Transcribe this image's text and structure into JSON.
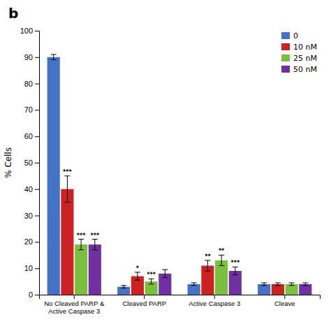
{
  "chart_data": {
    "type": "bar",
    "title": "b",
    "ylabel": "% Cells",
    "categories": [
      "No Cleaved PARP &\nActive Caspase 3",
      "Cleaved PARP",
      "Active Caspase 3",
      "Cleave"
    ],
    "series": [
      {
        "name": "0",
        "color": "#4472C4",
        "values": [
          90,
          3,
          4,
          4
        ],
        "errors": [
          1,
          0.5,
          0.5,
          0.5
        ],
        "significance": [
          null,
          null,
          null,
          null
        ]
      },
      {
        "name": "10 nM",
        "color": "#CC2222",
        "values": [
          40,
          7,
          11,
          4
        ],
        "errors": [
          5,
          1.5,
          2,
          0.5
        ],
        "significance": [
          "***",
          "*",
          "**",
          null
        ]
      },
      {
        "name": "25 nM",
        "color": "#7BBF3E",
        "values": [
          19,
          5,
          13,
          4
        ],
        "errors": [
          2,
          1,
          2,
          0.5
        ],
        "significance": [
          "***",
          "***",
          "**",
          null
        ]
      },
      {
        "name": "50 nM",
        "color": "#7030A0",
        "values": [
          19,
          8,
          9,
          4
        ],
        "errors": [
          2,
          1.5,
          1.5,
          0.5
        ],
        "significance": [
          "***",
          null,
          "***",
          null
        ]
      }
    ],
    "ylim": [
      0,
      100
    ],
    "yticks": [
      0,
      10,
      20,
      30,
      40,
      50,
      60,
      70,
      80,
      90,
      100
    ],
    "grid": false,
    "legend": "upper right"
  }
}
